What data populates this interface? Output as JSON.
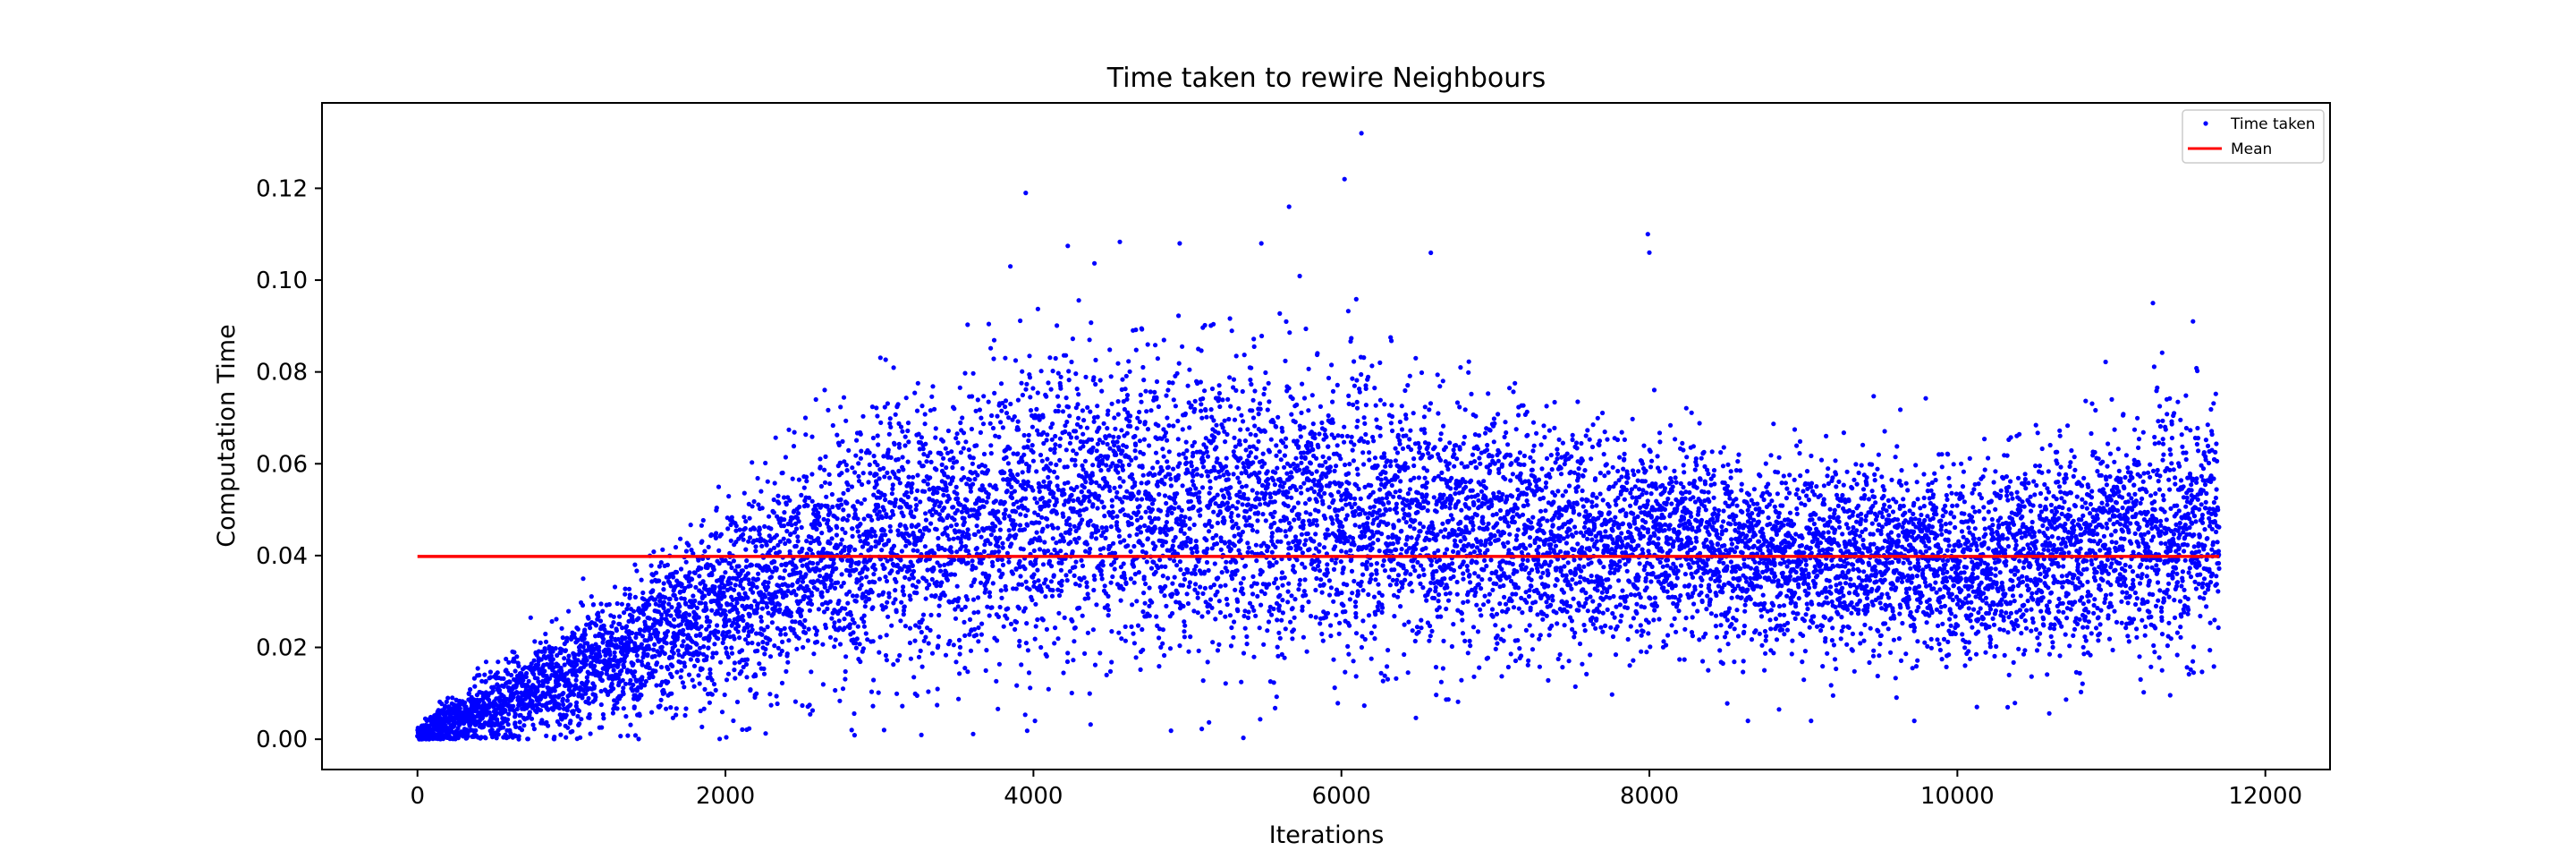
{
  "chart_data": {
    "type": "scatter",
    "title": "Time taken to rewire Neighbours",
    "xlabel": "Iterations",
    "ylabel": "Computation Time",
    "xlim": [
      -620,
      12420
    ],
    "ylim": [
      -0.0066,
      0.1386
    ],
    "xticks": [
      0,
      2000,
      4000,
      6000,
      8000,
      10000,
      12000
    ],
    "xtick_labels": [
      "0",
      "2000",
      "4000",
      "6000",
      "8000",
      "10000",
      "12000"
    ],
    "yticks": [
      0.0,
      0.02,
      0.04,
      0.06,
      0.08,
      0.1,
      0.12
    ],
    "ytick_labels": [
      "0.00",
      "0.02",
      "0.04",
      "0.06",
      "0.08",
      "0.10",
      "0.12"
    ],
    "grid": false,
    "legend_position": "upper right",
    "series": [
      {
        "name": "Time taken",
        "kind": "scatter",
        "color": "#0000ff",
        "n_points": 11700,
        "x_range": [
          0,
          11700
        ],
        "trend": {
          "x": [
            0,
            250,
            500,
            1000,
            1500,
            2000,
            2500,
            3000,
            3500,
            4000,
            4500,
            5000,
            5500,
            6000,
            6500,
            7000,
            7500,
            8000,
            8500,
            9000,
            9500,
            10000,
            10500,
            11000,
            11700
          ],
          "mean": [
            0.001,
            0.004,
            0.007,
            0.014,
            0.021,
            0.03,
            0.037,
            0.043,
            0.047,
            0.05,
            0.051,
            0.051,
            0.05,
            0.049,
            0.047,
            0.045,
            0.044,
            0.043,
            0.041,
            0.04,
            0.039,
            0.038,
            0.04,
            0.043,
            0.046
          ],
          "spread": [
            0.001,
            0.003,
            0.004,
            0.006,
            0.008,
            0.01,
            0.012,
            0.014,
            0.015,
            0.016,
            0.016,
            0.016,
            0.016,
            0.015,
            0.014,
            0.013,
            0.012,
            0.011,
            0.01,
            0.01,
            0.01,
            0.01,
            0.011,
            0.012,
            0.013
          ]
        },
        "notable_points": [
          {
            "x": 3950,
            "y": 0.119
          },
          {
            "x": 6020,
            "y": 0.122
          },
          {
            "x": 6130,
            "y": 0.132
          },
          {
            "x": 5660,
            "y": 0.116
          },
          {
            "x": 5480,
            "y": 0.108
          },
          {
            "x": 4950,
            "y": 0.108
          },
          {
            "x": 7990,
            "y": 0.11
          },
          {
            "x": 8000,
            "y": 0.106
          },
          {
            "x": 3850,
            "y": 0.103
          },
          {
            "x": 11270,
            "y": 0.095
          },
          {
            "x": 11530,
            "y": 0.091
          },
          {
            "x": 2820,
            "y": 0.002
          },
          {
            "x": 3030,
            "y": 0.002
          },
          {
            "x": 4010,
            "y": 0.004
          },
          {
            "x": 8640,
            "y": 0.004
          },
          {
            "x": 9050,
            "y": 0.004
          },
          {
            "x": 9720,
            "y": 0.004
          }
        ]
      },
      {
        "name": "Mean",
        "kind": "line",
        "color": "#ff0000",
        "x": [
          0,
          11700
        ],
        "y": [
          0.0398,
          0.0398
        ]
      }
    ]
  }
}
